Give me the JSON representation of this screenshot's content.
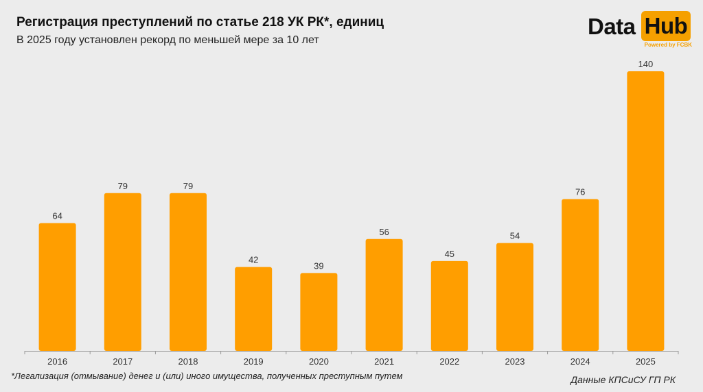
{
  "header": {
    "title": "Регистрация преступлений по статье 218 УК РК*, единиц",
    "subtitle": "В 2025 году установлен рекорд по меньшей мере за 10 лет"
  },
  "logo": {
    "data_text": "Data",
    "hub_text": "Hub",
    "powered_text": "Powered by FCBK"
  },
  "colors": {
    "bar": "#ff9e00",
    "background": "#ececec",
    "accent": "#f5a000"
  },
  "chart_data": {
    "type": "bar",
    "title": "Регистрация преступлений по статье 218 УК РК*, единиц",
    "categories": [
      "2016",
      "2017",
      "2018",
      "2019",
      "2020",
      "2021",
      "2022",
      "2023",
      "2024",
      "2025"
    ],
    "values": [
      64,
      79,
      79,
      42,
      39,
      56,
      45,
      54,
      76,
      140
    ],
    "xlabel": "",
    "ylabel": "",
    "ylim": [
      0,
      140
    ],
    "grid": false,
    "data_labels": true
  },
  "footer": {
    "footnote": "*Легализация (отмывание) денег и (или) иного имущества, полученных преступным путем",
    "source": "Данные КПСиСУ ГП РК"
  }
}
